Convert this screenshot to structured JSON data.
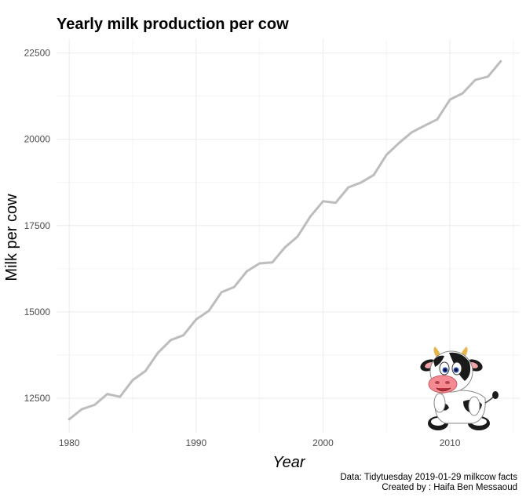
{
  "chart_data": {
    "type": "line",
    "title": "Yearly milk production per cow",
    "xlabel": "Year",
    "ylabel": "Milk per cow",
    "xlim": [
      1979,
      2015.5
    ],
    "ylim": [
      11500,
      22900
    ],
    "x_ticks": [
      1980,
      1990,
      2000,
      2010
    ],
    "y_ticks": [
      12500,
      15000,
      17500,
      20000,
      22500
    ],
    "x_tick_labels": [
      "1980",
      "1990",
      "2000",
      "2010"
    ],
    "y_tick_labels": [
      "12500",
      "15000",
      "17500",
      "20000",
      "22500"
    ],
    "grid": true,
    "line_color": "#bdbdbd",
    "series": [
      {
        "x": [
          1980,
          1981,
          1982,
          1983,
          1984,
          1985,
          1986,
          1987,
          1988,
          1989,
          1990,
          1991,
          1992,
          1993,
          1994,
          1995,
          1996,
          1997,
          1998,
          1999,
          2000,
          2001,
          2002,
          2003,
          2004,
          2005,
          2006,
          2007,
          2008,
          2009,
          2010,
          2011,
          2012,
          2013,
          2014
        ],
        "values": [
          11891,
          12183,
          12306,
          12622,
          12541,
          13024,
          13285,
          13819,
          14185,
          14323,
          14782,
          15031,
          15570,
          15722,
          16179,
          16405,
          16433,
          16871,
          17185,
          17763,
          18204,
          18162,
          18608,
          18749,
          18967,
          19550,
          19895,
          20204,
          20395,
          20576,
          21149,
          21334,
          21722,
          21816,
          22260
        ]
      }
    ],
    "caption": [
      "Data: Tidytuesday 2019-01-29 milkcow facts",
      "Created by : Haifa Ben Messaoud"
    ],
    "mascot": "cow-icon"
  }
}
